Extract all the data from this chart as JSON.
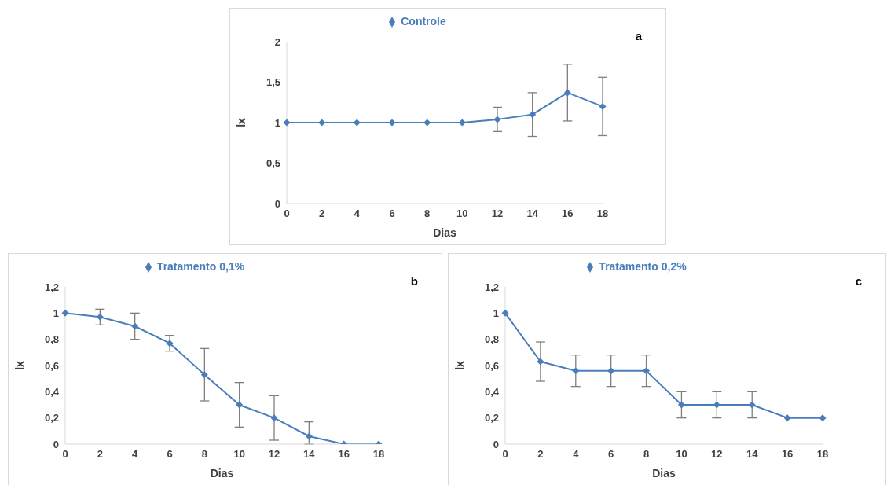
{
  "chart_data": [
    {
      "type": "line",
      "categories": [
        "0",
        "2",
        "4",
        "6",
        "8",
        "10",
        "12",
        "14",
        "16",
        "18"
      ],
      "xlabel": "Dias",
      "ylabel": "lx",
      "annotations": [
        "a"
      ],
      "legend": "top",
      "marker": "diamond",
      "grid": false,
      "ylim": [
        0,
        2
      ],
      "yticks": [
        0,
        {
          "value": 0.5,
          "label": "0,5"
        },
        1,
        {
          "value": 1.5,
          "label": "1,5"
        },
        2
      ],
      "series": [
        {
          "name": "Controle",
          "color": "#4a7ebb",
          "values": [
            1,
            1,
            1,
            1,
            1,
            1,
            1.04,
            1.1,
            1.37,
            1.2
          ],
          "errors": [
            null,
            null,
            null,
            null,
            null,
            null,
            0.15,
            0.27,
            0.35,
            0.36
          ]
        }
      ]
    },
    {
      "type": "line",
      "categories": [
        "0",
        "2",
        "4",
        "6",
        "8",
        "10",
        "12",
        "14",
        "16",
        "18"
      ],
      "xlabel": "Dias",
      "ylabel": "lx",
      "annotations": [
        "b"
      ],
      "legend": "top",
      "marker": "diamond",
      "grid": false,
      "ylim": [
        0,
        1.2
      ],
      "yticks": [
        0,
        {
          "value": 0.2,
          "label": "0,2"
        },
        {
          "value": 0.4,
          "label": "0,4"
        },
        {
          "value": 0.6,
          "label": "0,6"
        },
        {
          "value": 0.8,
          "label": "0,8"
        },
        1,
        {
          "value": 1.2,
          "label": "1,2"
        }
      ],
      "series": [
        {
          "name": "Tratamento  0,1%",
          "color": "#4a7ebb",
          "values": [
            1,
            0.97,
            0.9,
            0.77,
            0.53,
            0.3,
            0.2,
            0.06,
            0,
            0
          ],
          "errors": [
            null,
            0.06,
            0.1,
            0.06,
            0.2,
            0.17,
            0.17,
            [
              0,
              0.17
            ],
            null,
            null
          ]
        }
      ]
    },
    {
      "type": "line",
      "categories": [
        "0",
        "2",
        "4",
        "6",
        "8",
        "10",
        "12",
        "14",
        "16",
        "18"
      ],
      "xlabel": "Dias",
      "ylabel": "lx",
      "annotations": [
        "c"
      ],
      "legend": "top",
      "marker": "diamond",
      "grid": false,
      "ylim": [
        0,
        1.2
      ],
      "yticks": [
        0,
        {
          "value": 0.2,
          "label": "0,2"
        },
        {
          "value": 0.4,
          "label": "0,4"
        },
        {
          "value": 0.6,
          "label": "0,6"
        },
        {
          "value": 0.8,
          "label": "0,8"
        },
        1,
        {
          "value": 1.2,
          "label": "1,2"
        }
      ],
      "series": [
        {
          "name": "Tratamento  0,2%",
          "color": "#4a7ebb",
          "values": [
            1,
            0.63,
            0.56,
            0.56,
            0.56,
            0.3,
            0.3,
            0.3,
            0.2,
            0.2
          ],
          "errors": [
            null,
            0.15,
            0.12,
            0.12,
            0.12,
            0.1,
            0.1,
            0.1,
            null,
            null
          ]
        }
      ]
    }
  ]
}
